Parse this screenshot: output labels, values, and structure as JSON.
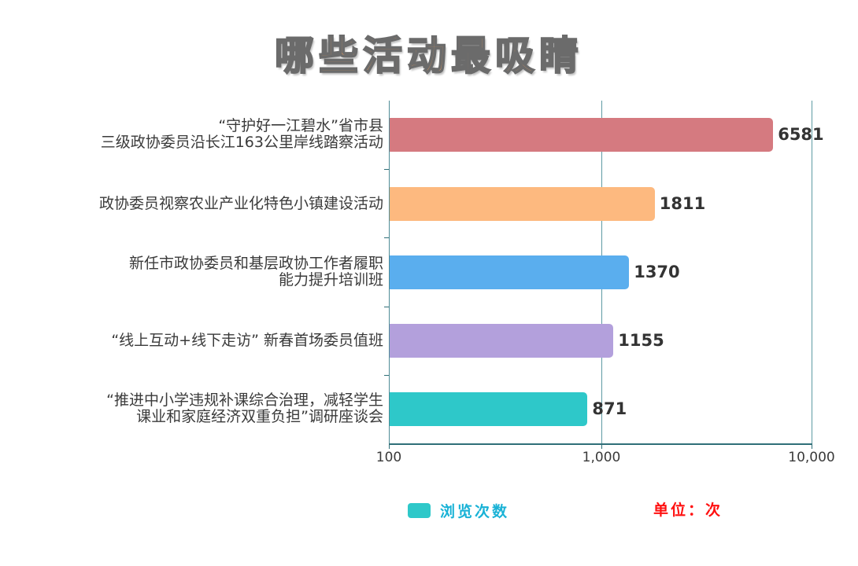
{
  "title": "哪些活动最吸睛",
  "legend": {
    "label": "浏览次数",
    "swatch_color": "#2ec8c9",
    "label_color": "#19b2d6"
  },
  "unit": {
    "label": "单位：次",
    "color": "#ff1010"
  },
  "x_axis": {
    "ticks": [
      "100",
      "1,000",
      "10,000"
    ]
  },
  "categories": [
    {
      "label": "“守护好一江碧水”省市县\n三级政协委员沿长江163公里岸线踏察活动",
      "value": "6581",
      "color": "#d57a80"
    },
    {
      "label": "政协委员视察农业产业化特色小镇建设活动",
      "value": "1811",
      "color": "#fdb97f"
    },
    {
      "label": "新任市政协委员和基层政协工作者履职\n能力提升培训班",
      "value": "1370",
      "color": "#5aaeee"
    },
    {
      "label": "“线上互动+线下走访”  新春首场委员值班",
      "value": "1155",
      "color": "#b3a0dc"
    },
    {
      "label": "“推进中小学违规补课综合治理，减轻学生\n课业和家庭经济双重负担”调研座谈会",
      "value": "871",
      "color": "#2ec8c9"
    }
  ],
  "chart_data": {
    "type": "bar",
    "orientation": "horizontal",
    "title": "哪些活动最吸睛",
    "categories": [
      "“守护好一江碧水”省市县三级政协委员沿长江163公里岸线踏察活动",
      "政协委员视察农业产业化特色小镇建设活动",
      "新任市政协委员和基层政协工作者履职能力提升培训班",
      "“线上互动+线下走访” 新春首场委员值班",
      "“推进中小学违规补课综合治理，减轻学生课业和家庭经济双重负担”调研座谈会"
    ],
    "series": [
      {
        "name": "浏览次数",
        "values": [
          6581,
          1811,
          1370,
          1155,
          871
        ]
      }
    ],
    "xlabel": "",
    "ylabel": "",
    "x_scale": "log",
    "xlim": [
      100,
      10000
    ],
    "x_ticks": [
      "100",
      "1,000",
      "10,000"
    ],
    "grid": true,
    "legend_position": "bottom",
    "annotations": [
      "单位：次"
    ],
    "bar_colors": [
      "#d57a80",
      "#fdb97f",
      "#5aaeee",
      "#b3a0dc",
      "#2ec8c9"
    ]
  }
}
